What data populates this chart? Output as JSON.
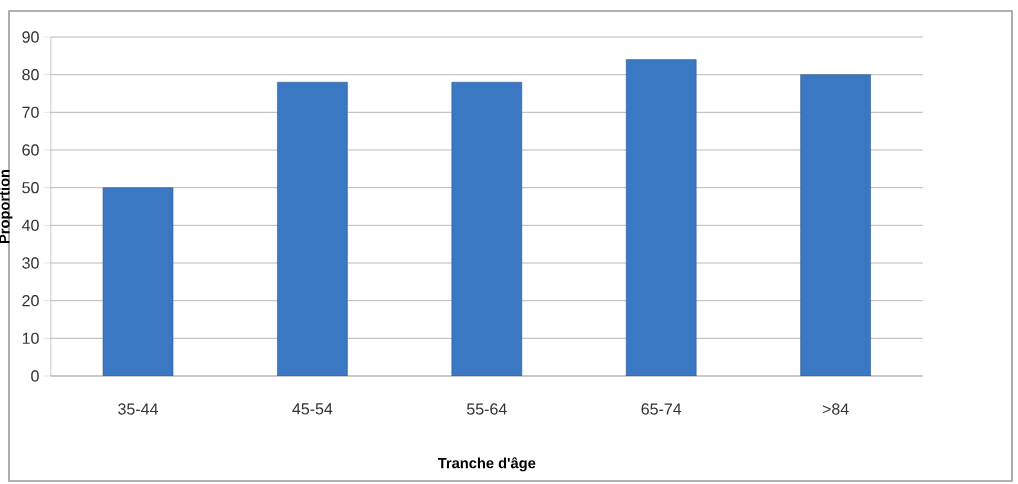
{
  "chart_data": {
    "type": "bar",
    "xlabel": "Tranche d'âge",
    "ylabel": "Proportion",
    "categories": [
      "35-44",
      "45-54",
      "55-64",
      "65-74",
      ">84"
    ],
    "values": [
      50,
      78,
      78,
      84,
      80
    ],
    "color": "#3a78c4",
    "ylim": [
      0,
      90
    ],
    "yticks": [
      0,
      10,
      20,
      30,
      40,
      50,
      60,
      70,
      80,
      90
    ],
    "grid": "y"
  }
}
